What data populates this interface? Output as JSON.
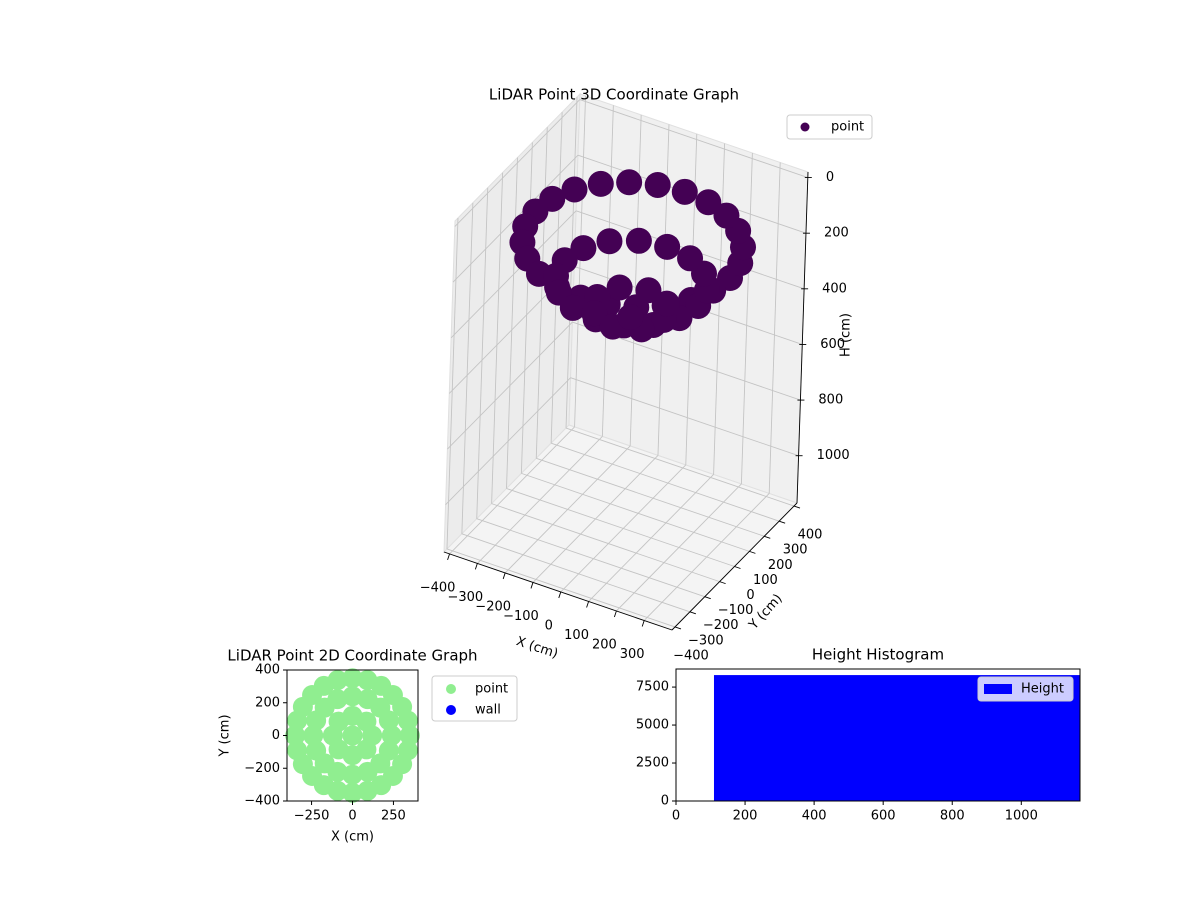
{
  "chart_data": [
    {
      "type": "scatter3d",
      "title": "LiDAR Point 3D Coordinate Graph",
      "xlabel": "X (cm)",
      "ylabel": "Y (cm)",
      "zlabel": "H (cm)",
      "xlim": [
        -420,
        400
      ],
      "ylim": [
        -420,
        420
      ],
      "zlim": [
        -20,
        1170
      ],
      "z_inverted": true,
      "grid": true,
      "legend": "upper right",
      "xticks": [
        {
          "value": -400,
          "label": "−400"
        },
        {
          "value": -300,
          "label": "−300"
        },
        {
          "value": -200,
          "label": "−200"
        },
        {
          "value": -100,
          "label": "−100"
        },
        0,
        100,
        200,
        300
      ],
      "yticks": [
        {
          "value": -400,
          "label": "−400"
        },
        {
          "value": -300,
          "label": "−300"
        },
        {
          "value": -200,
          "label": "−200"
        },
        {
          "value": -100,
          "label": "−100"
        },
        0,
        100,
        200,
        300,
        400
      ],
      "zticks": [
        0,
        200,
        400,
        600,
        800,
        1000
      ],
      "series": [
        {
          "name": "point",
          "color": "#440154",
          "x": [
            350,
            338,
            303,
            247,
            175,
            91,
            0,
            -91,
            -175,
            -247,
            -303,
            -338,
            -350,
            -338,
            -303,
            -247,
            -175,
            -91,
            0,
            91,
            175,
            247,
            303,
            338,
            240,
            222,
            170,
            92,
            0,
            -92,
            -170,
            -222,
            -240,
            -222,
            -170,
            -92,
            0,
            92,
            170,
            222,
            120,
            85,
            0,
            -85,
            -120,
            -85,
            0,
            85,
            0
          ],
          "y": [
            0,
            91,
            175,
            247,
            303,
            338,
            350,
            338,
            303,
            247,
            175,
            91,
            0,
            -91,
            -175,
            -247,
            -303,
            -338,
            -350,
            -338,
            -303,
            -247,
            -175,
            -91,
            0,
            92,
            170,
            222,
            240,
            222,
            170,
            92,
            0,
            -92,
            -170,
            -222,
            -240,
            -222,
            -170,
            -92,
            0,
            85,
            120,
            85,
            0,
            -85,
            -120,
            -85,
            0
          ],
          "z": [
            150,
            150,
            150,
            150,
            150,
            150,
            150,
            150,
            150,
            150,
            150,
            150,
            150,
            150,
            150,
            150,
            150,
            150,
            150,
            150,
            150,
            150,
            150,
            150,
            288,
            288,
            288,
            288,
            288,
            288,
            288,
            288,
            288,
            288,
            288,
            288,
            288,
            288,
            288,
            288,
            379,
            379,
            379,
            379,
            379,
            379,
            379,
            379,
            410
          ]
        }
      ]
    },
    {
      "type": "scatter",
      "title": "LiDAR Point 2D Coordinate Graph",
      "xlabel": "X (cm)",
      "ylabel": "Y (cm)",
      "xlim": [
        -400,
        400
      ],
      "ylim": [
        -400,
        400
      ],
      "legend": "outside right",
      "xticks": [
        {
          "value": -250,
          "label": "−250"
        },
        0,
        250
      ],
      "yticks": [
        {
          "value": -400,
          "label": "−400"
        },
        {
          "value": -200,
          "label": "−200"
        },
        0,
        200,
        400
      ],
      "series": [
        {
          "name": "point",
          "color": "#90ee90",
          "x": [
            350,
            338,
            303,
            247,
            175,
            91,
            0,
            -91,
            -175,
            -247,
            -303,
            -338,
            -350,
            -338,
            -303,
            -247,
            -175,
            -91,
            0,
            91,
            175,
            247,
            303,
            338,
            240,
            222,
            170,
            92,
            0,
            -92,
            -170,
            -222,
            -240,
            -222,
            -170,
            -92,
            0,
            92,
            170,
            222,
            120,
            85,
            0,
            -85,
            -120,
            -85,
            0,
            85,
            0
          ],
          "y": [
            0,
            91,
            175,
            247,
            303,
            338,
            350,
            338,
            303,
            247,
            175,
            91,
            0,
            -91,
            -175,
            -247,
            -303,
            -338,
            -350,
            -338,
            -303,
            -247,
            -175,
            -91,
            0,
            92,
            170,
            222,
            240,
            222,
            170,
            92,
            0,
            -92,
            -170,
            -222,
            -240,
            -222,
            -170,
            -92,
            0,
            85,
            120,
            85,
            0,
            -85,
            -120,
            -85,
            0
          ]
        },
        {
          "name": "wall",
          "color": "#0000ff",
          "x": [],
          "y": []
        }
      ]
    },
    {
      "type": "histogram",
      "title": "Height Histogram",
      "legend": "upper right",
      "bins": [
        110,
        1170
      ],
      "xlim": [
        0,
        1170
      ],
      "ylim": [
        0,
        8690
      ],
      "xticks": [
        0,
        200,
        400,
        600,
        800,
        1000
      ],
      "yticks": [
        0,
        2500,
        5000,
        7500
      ],
      "series": [
        {
          "name": "Height",
          "color": "#0000ff",
          "values": [
            8290
          ]
        }
      ]
    }
  ]
}
